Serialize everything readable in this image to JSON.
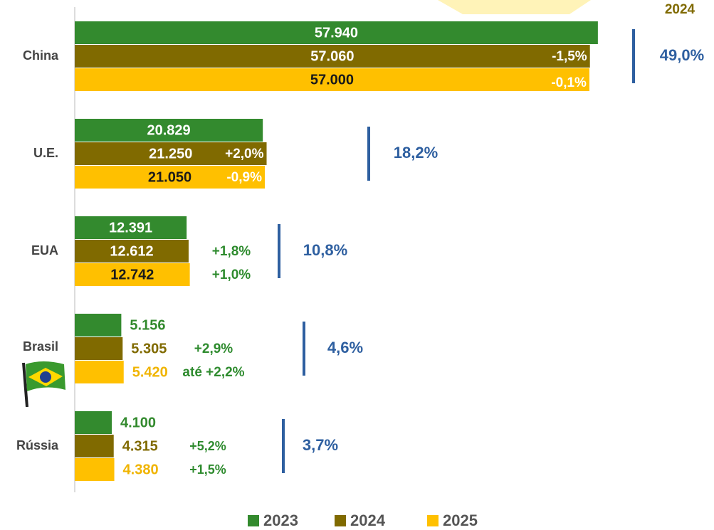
{
  "chart_data": {
    "type": "hbar",
    "categories": [
      "China",
      "U.E.",
      "EUA",
      "Brasil",
      "Rússia"
    ],
    "xlim": [
      0,
      60000
    ],
    "series": [
      {
        "name": "2023",
        "color": "#338a2e",
        "values": [
          57940,
          20829,
          12391,
          5156,
          4100
        ],
        "value_labels": [
          "57.940",
          "20.829",
          "12.391",
          "5.156",
          "4.100"
        ]
      },
      {
        "name": "2024",
        "color": "#806a00",
        "values": [
          57060,
          21250,
          12612,
          5305,
          4315
        ],
        "value_labels": [
          "57.060",
          "21.250",
          "12.612",
          "5.305",
          "4.315"
        ],
        "change_labels": [
          "-1,5%",
          "+2,0%",
          "+1,8%",
          "+2,9%",
          "+5,2%"
        ]
      },
      {
        "name": "2025",
        "color": "#ffc000",
        "values": [
          57000,
          21050,
          12742,
          5420,
          4380
        ],
        "value_labels": [
          "57.000",
          "21.050",
          "12.742",
          "5.420",
          "4.380"
        ],
        "change_labels": [
          "-0,1%",
          "-0,9%",
          "+1,0%",
          "até +2,2%",
          "+1,5%"
        ]
      }
    ],
    "share_title": "2024",
    "share_labels": [
      "49,0%",
      "18,2%",
      "10,8%",
      "4,6%",
      "3,7%"
    ]
  }
}
